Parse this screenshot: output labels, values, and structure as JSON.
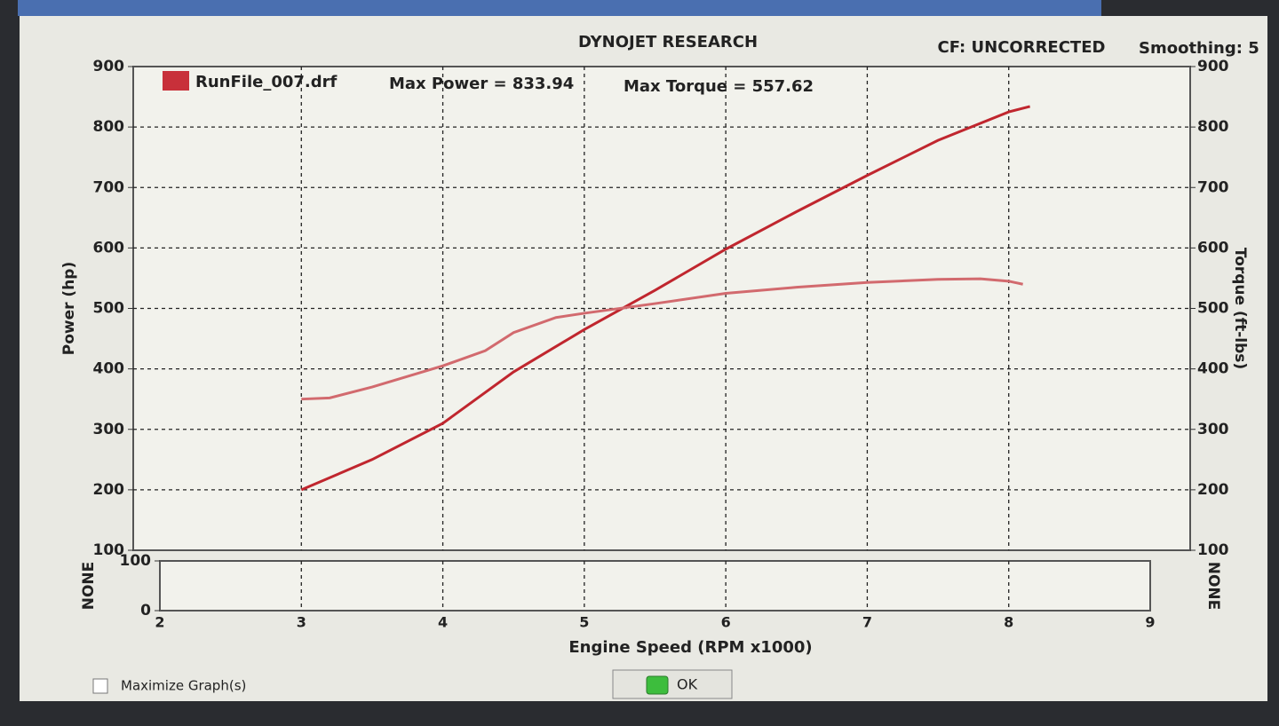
{
  "header": {
    "title": "DYNOJET RESEARCH",
    "cf": "CF: UNCORRECTED",
    "smoothing": "Smoothing: 5"
  },
  "legend": {
    "run": "RunFile_007.drf",
    "max_power": "Max Power = 833.94",
    "max_torque": "Max Torque = 557.62",
    "color": "#c8303a"
  },
  "chart_data": [
    {
      "type": "line",
      "ylabel": "Power (hp)",
      "y2label": "Torque (ft-lbs)",
      "xlim": [
        2,
        9
      ],
      "xticks": [
        3,
        4,
        5,
        6,
        7,
        8
      ],
      "ylim": [
        100,
        900
      ],
      "yticks": [
        100,
        200,
        300,
        400,
        500,
        600,
        700,
        800,
        900
      ],
      "y2lim": [
        100,
        900
      ],
      "y2ticks": [
        100,
        200,
        300,
        400,
        500,
        600,
        700,
        800,
        900
      ],
      "grid": true,
      "series": [
        {
          "color": "#c0262e",
          "x": [
            3.0,
            3.5,
            4.0,
            4.5,
            5.0,
            5.5,
            6.0,
            6.5,
            7.0,
            7.5,
            8.0,
            8.15
          ],
          "values": [
            200,
            250,
            310,
            395,
            465,
            530,
            598,
            660,
            720,
            778,
            825,
            834
          ]
        },
        {
          "color": "#d26a6e",
          "axis": "y2",
          "x": [
            3.0,
            3.2,
            3.5,
            4.0,
            4.3,
            4.5,
            4.8,
            5.0,
            5.5,
            6.0,
            6.5,
            7.0,
            7.5,
            7.8,
            8.0,
            8.1
          ],
          "values": [
            350,
            352,
            370,
            405,
            430,
            460,
            485,
            492,
            508,
            525,
            535,
            543,
            548,
            549,
            545,
            540
          ]
        }
      ]
    },
    {
      "type": "line",
      "ylabel": "NONE",
      "y2label": "NONE",
      "xlabel": "Engine Speed (RPM x1000)",
      "xlim": [
        2,
        9
      ],
      "xticks": [
        2,
        3,
        4,
        5,
        6,
        7,
        8,
        9
      ],
      "ylim": [
        0,
        100
      ],
      "yticks": [
        0,
        100
      ],
      "grid": true,
      "series": []
    }
  ],
  "footer": {
    "maximize": "Maximize Graph(s)",
    "ok": "OK"
  }
}
